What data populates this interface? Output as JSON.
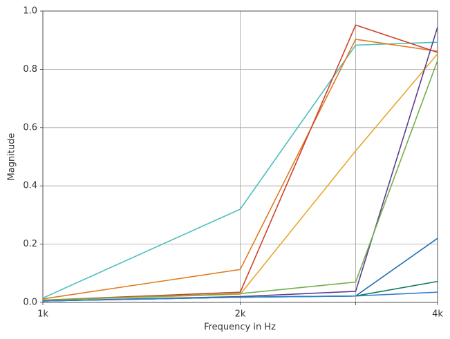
{
  "chart_data": {
    "type": "line",
    "xlabel": "Frequency in Hz",
    "ylabel": "Magnitude",
    "xscale": "log",
    "grid": true,
    "x": [
      1000,
      2000,
      3000,
      4000
    ],
    "xlim": [
      1000,
      4000
    ],
    "xticks": [
      {
        "value": 1000,
        "label": "1k"
      },
      {
        "value": 2000,
        "label": "2k"
      },
      {
        "value": 3000,
        "label": null
      },
      {
        "value": 4000,
        "label": "4k"
      }
    ],
    "ylim": [
      0,
      1
    ],
    "yticks": [
      {
        "value": 0,
        "label": "0.0"
      },
      0.2,
      0.4,
      0.6,
      0.8,
      {
        "value": 1,
        "label": "1.0"
      }
    ],
    "series": [
      {
        "color": "#4dbdbd",
        "values": [
          0.015,
          0.32,
          0.883,
          0.893
        ]
      },
      {
        "color": "#e07b20",
        "values": [
          0.012,
          0.113,
          0.903,
          0.862
        ]
      },
      {
        "color": "#d0402a",
        "values": [
          0.008,
          0.035,
          0.952,
          0.858
        ]
      },
      {
        "color": "#e8a82a",
        "values": [
          0.008,
          0.028,
          0.52,
          0.853
        ]
      },
      {
        "color": "#5a3e8e",
        "values": [
          0.005,
          0.02,
          0.038,
          0.945
        ]
      },
      {
        "color": "#72ae48",
        "values": [
          0.008,
          0.03,
          0.07,
          0.83
        ]
      },
      {
        "color": "#1f6fb0",
        "values": [
          0.005,
          0.018,
          0.022,
          0.22
        ]
      },
      {
        "color": "#0f7a55",
        "values": [
          0.005,
          0.018,
          0.022,
          0.072
        ]
      },
      {
        "color": "#2f7fcf",
        "values": [
          0.005,
          0.018,
          0.022,
          0.035
        ]
      }
    ]
  }
}
